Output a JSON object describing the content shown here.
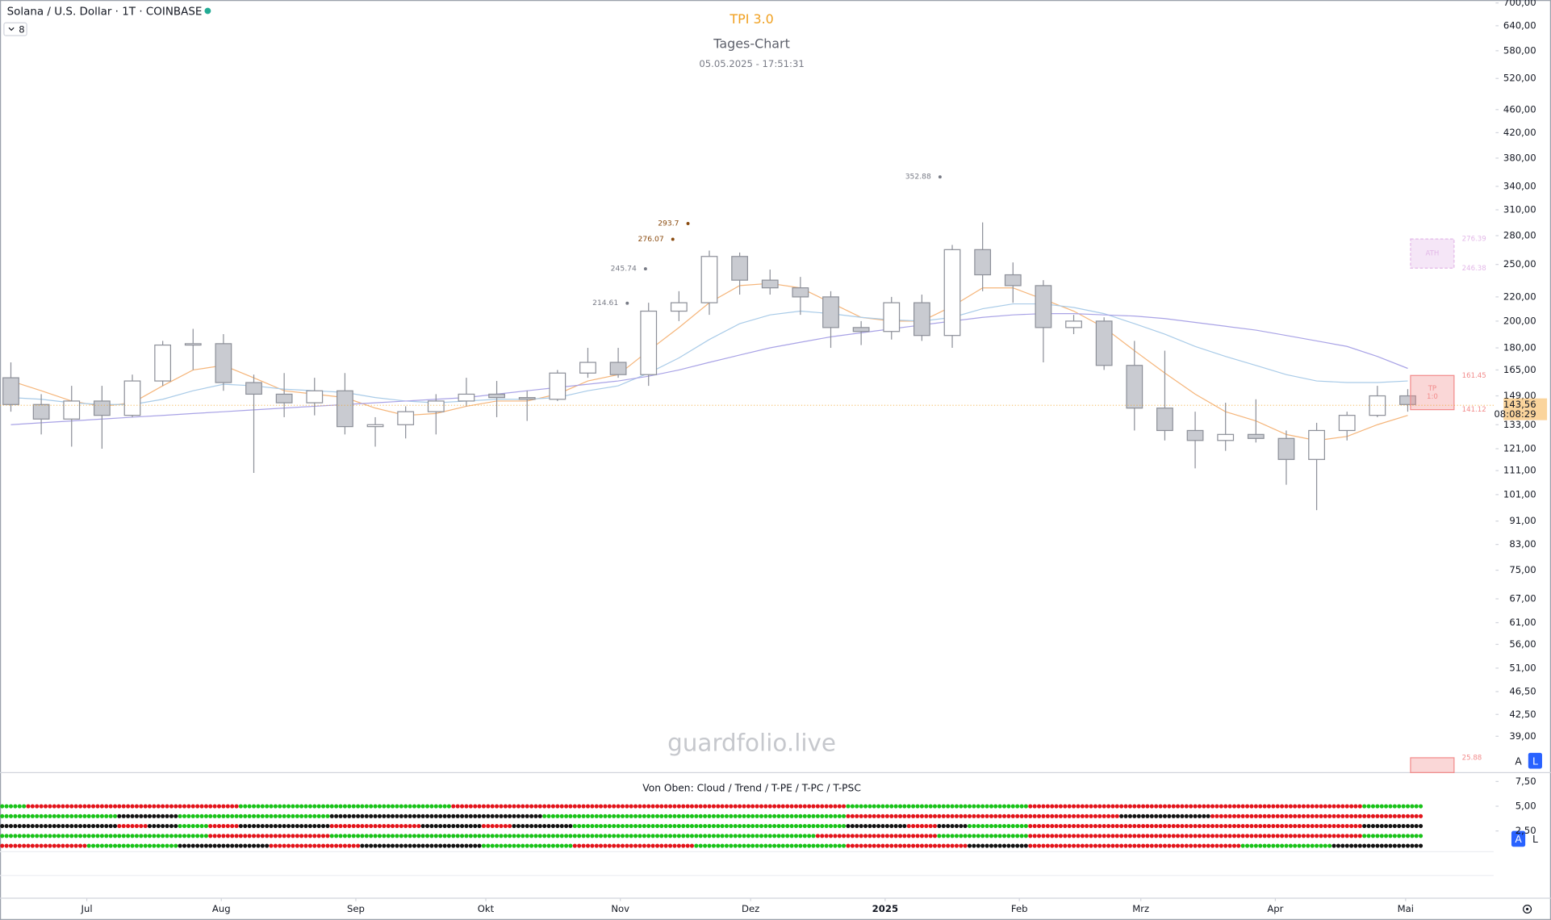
{
  "header": {
    "symbol": "Solana / U.S. Dollar · 1T · COINBASE",
    "indicators": 8
  },
  "watermark": "guardfolio.live",
  "ui": {
    "scale_buttons": [
      "A",
      "L",
      "A",
      "L"
    ]
  },
  "chart_data": [
    {
      "type": "candlestick",
      "title": "TPI 3.0",
      "subtitle": "Tages-Chart",
      "timestamp": "05.05.2025 - 17:51:31",
      "log_scale": true,
      "grid": false,
      "open": [
        160,
        144,
        136,
        146,
        138,
        158,
        182,
        183,
        157,
        150,
        145,
        152,
        132,
        133,
        140,
        146,
        150,
        148,
        147,
        163,
        170,
        162,
        208,
        215,
        258,
        235,
        228,
        220,
        195,
        192,
        215,
        189,
        265,
        240,
        230,
        195,
        200,
        168,
        142,
        130,
        125,
        128,
        126,
        116,
        130,
        138,
        149
      ],
      "high": [
        170,
        150,
        155,
        155,
        162,
        185,
        194,
        190,
        162,
        163,
        160,
        163,
        137,
        143,
        150,
        160,
        158,
        152,
        165,
        180,
        180,
        215,
        225,
        264,
        262,
        245,
        238,
        225,
        200,
        220,
        222,
        270,
        295,
        252,
        235,
        205,
        203,
        185,
        178,
        140,
        145,
        147,
        130,
        134,
        140,
        155,
        153
      ],
      "low": [
        140,
        128,
        122,
        121,
        137,
        155,
        165,
        152,
        110,
        137,
        138,
        128,
        122,
        126,
        128,
        143,
        137,
        135,
        146,
        160,
        160,
        155,
        200,
        205,
        222,
        222,
        205,
        180,
        182,
        186,
        185,
        180,
        225,
        215,
        170,
        190,
        165,
        130,
        125,
        112,
        120,
        124,
        105,
        95,
        125,
        137,
        140
      ],
      "close": [
        144,
        136,
        146,
        138,
        158,
        182,
        183,
        157,
        150,
        145,
        152,
        132,
        133,
        140,
        146,
        150,
        148,
        147,
        163,
        170,
        162,
        208,
        215,
        258,
        235,
        228,
        220,
        195,
        192,
        215,
        189,
        265,
        240,
        230,
        195,
        200,
        168,
        142,
        130,
        125,
        128,
        126,
        116,
        130,
        138,
        149,
        144
      ],
      "up_color": "#ffffff",
      "down_color": "#c9cbd1",
      "wick_color": "#8d9099",
      "xlim": [
        -0.3583,
        46.548
      ],
      "xticks": [
        {
          "value": 2.5,
          "label": "Jul"
        },
        {
          "value": 6.93,
          "label": "Aug"
        },
        {
          "value": 11.36,
          "label": "Sep"
        },
        {
          "value": 15.64,
          "label": "Okt"
        },
        {
          "value": 20.07,
          "label": "Nov"
        },
        {
          "value": 24.36,
          "label": "Dez"
        },
        {
          "value": 28.79,
          "label": "2025"
        },
        {
          "value": 33.21,
          "label": "Feb"
        },
        {
          "value": 37.21,
          "label": "Mrz"
        },
        {
          "value": 41.64,
          "label": "Apr"
        },
        {
          "value": 45.93,
          "label": "Mai"
        }
      ],
      "ylim": [
        33.8,
        708.2
      ],
      "yticks": [
        {
          "value": 700,
          "label": "700,00"
        },
        {
          "value": 640,
          "label": "640,00"
        },
        {
          "value": 580,
          "label": "580,00"
        },
        {
          "value": 520,
          "label": "520,00"
        },
        {
          "value": 460,
          "label": "460,00"
        },
        {
          "value": 420,
          "label": "420,00"
        },
        {
          "value": 380,
          "label": "380,00"
        },
        {
          "value": 340,
          "label": "340,00"
        },
        {
          "value": 310,
          "label": "310,00"
        },
        {
          "value": 280,
          "label": "280,00"
        },
        {
          "value": 250,
          "label": "250,00"
        },
        {
          "value": 220,
          "label": "220,00"
        },
        {
          "value": 200,
          "label": "200,00"
        },
        {
          "value": 180,
          "label": "180,00"
        },
        {
          "value": 165,
          "label": "165,00"
        },
        {
          "value": 149,
          "label": "149,00"
        },
        {
          "value": 133,
          "label": "133,00"
        },
        {
          "value": 121,
          "label": "121,00"
        },
        {
          "value": 111,
          "label": "111,00"
        },
        {
          "value": 101,
          "label": "101,00"
        },
        {
          "value": 91,
          "label": "91,00"
        },
        {
          "value": 83,
          "label": "83,00"
        },
        {
          "value": 75,
          "label": "75,00"
        },
        {
          "value": 67,
          "label": "67,00"
        },
        {
          "value": 61,
          "label": "61,00"
        },
        {
          "value": 56,
          "label": "56,00"
        },
        {
          "value": 51,
          "label": "51,00"
        },
        {
          "value": 46.5,
          "label": "46,50"
        },
        {
          "value": 42.5,
          "label": "42,50"
        },
        {
          "value": 39,
          "label": "39,00"
        }
      ],
      "moving_averages": [
        {
          "color": "#f5b57a",
          "values": [
            158,
            152,
            146,
            143,
            145,
            155,
            165,
            168,
            160,
            152,
            150,
            148,
            142,
            138,
            139,
            143,
            146,
            146,
            150,
            158,
            162,
            178,
            195,
            215,
            230,
            232,
            228,
            215,
            203,
            200,
            200,
            212,
            228,
            228,
            218,
            208,
            195,
            178,
            163,
            150,
            140,
            135,
            128,
            125,
            127,
            133,
            138
          ]
        },
        {
          "color": "#a9cbe8",
          "values": [
            148,
            147,
            145,
            144,
            144,
            147,
            152,
            156,
            155,
            153,
            152,
            151,
            148,
            146,
            145,
            146,
            147,
            147,
            148,
            152,
            155,
            163,
            173,
            186,
            198,
            205,
            208,
            206,
            203,
            201,
            200,
            203,
            210,
            214,
            214,
            211,
            206,
            198,
            190,
            181,
            174,
            168,
            162,
            158,
            157,
            157,
            158
          ]
        },
        {
          "color": "#a9a3e6",
          "values": [
            133,
            134,
            135,
            136,
            137,
            138,
            139,
            140,
            141,
            142,
            143,
            144,
            145,
            146,
            147,
            148,
            150,
            152,
            154,
            156,
            158,
            161,
            165,
            170,
            175,
            180,
            184,
            188,
            191,
            194,
            197,
            200,
            203,
            205,
            206,
            206,
            205,
            204,
            202,
            199,
            196,
            193,
            189,
            185,
            181,
            174,
            166
          ]
        }
      ],
      "annotations": [
        {
          "value": 352.88,
          "x": 30.5,
          "color": "#787b86"
        },
        {
          "value": 293.7,
          "x": 22.2,
          "color": "#8a4b0f"
        },
        {
          "value": 276.07,
          "x": 21.7,
          "color": "#8a4b0f"
        },
        {
          "value": 245.74,
          "x": 20.8,
          "color": "#787b86"
        },
        {
          "value": 214.61,
          "x": 20.2,
          "color": "#787b86"
        }
      ],
      "zones": [
        {
          "top": 276.39,
          "bottom": 246.38,
          "label": "ATH",
          "color": "#e3b8e8"
        },
        {
          "top": 161.45,
          "bottom": 141.12,
          "label": "TP",
          "sublabel": "1:0",
          "color": "#f28b8b"
        }
      ],
      "offscale_zone": {
        "top": 25.88,
        "color": "#f28b8b"
      },
      "last_price": {
        "value": 143.56,
        "label": "143,56"
      },
      "countdown": "08:08:29"
    },
    {
      "type": "dots",
      "title": "Von Oben: Cloud / Trend / T-PE / T-PC / T-PSC",
      "ylim": [
        0.4,
        8.4
      ],
      "yticks": [
        {
          "value": 7.5,
          "label": "7,50"
        },
        {
          "value": 5,
          "label": "5,00"
        },
        {
          "value": 2.5,
          "label": "2,50"
        }
      ],
      "colors": {
        "up": "#19c219",
        "down": "#e3141b",
        "neutral": "#131313"
      },
      "rows": [
        [
          1,
          -1,
          -1,
          -1,
          -1,
          -1,
          -1,
          -1,
          1,
          1,
          1,
          1,
          1,
          1,
          1,
          -1,
          -1,
          -1,
          -1,
          -1,
          -1,
          -1,
          -1,
          -1,
          -1,
          -1,
          -1,
          -1,
          1,
          1,
          1,
          1,
          1,
          1,
          -1,
          -1,
          -1,
          -1,
          -1,
          -1,
          -1,
          -1,
          -1,
          -1,
          -1,
          1,
          1
        ],
        [
          1,
          1,
          1,
          1,
          0,
          0,
          1,
          1,
          1,
          1,
          1,
          0,
          0,
          0,
          0,
          0,
          0,
          0,
          1,
          1,
          1,
          1,
          1,
          1,
          1,
          1,
          1,
          1,
          -1,
          -1,
          -1,
          -1,
          -1,
          -1,
          -1,
          -1,
          -1,
          0,
          0,
          0,
          -1,
          -1,
          -1,
          -1,
          -1,
          -1,
          -1
        ],
        [
          0,
          0,
          0,
          0,
          -1,
          0,
          1,
          -1,
          0,
          0,
          0,
          -1,
          -1,
          -1,
          0,
          0,
          -1,
          0,
          0,
          1,
          1,
          1,
          1,
          1,
          1,
          1,
          1,
          1,
          0,
          0,
          -1,
          0,
          1,
          1,
          -1,
          -1,
          -1,
          -1,
          -1,
          -1,
          -1,
          -1,
          -1,
          -1,
          -1,
          0,
          0
        ],
        [
          1,
          1,
          1,
          1,
          1,
          1,
          1,
          -1,
          -1,
          -1,
          -1,
          1,
          1,
          1,
          1,
          1,
          1,
          1,
          1,
          1,
          1,
          1,
          1,
          1,
          1,
          1,
          1,
          -1,
          -1,
          -1,
          -1,
          1,
          1,
          1,
          -1,
          -1,
          -1,
          -1,
          -1,
          -1,
          -1,
          -1,
          -1,
          -1,
          -1,
          1,
          1
        ],
        [
          -1,
          -1,
          -1,
          1,
          1,
          1,
          0,
          0,
          0,
          -1,
          -1,
          -1,
          0,
          0,
          0,
          0,
          1,
          1,
          1,
          -1,
          -1,
          -1,
          -1,
          1,
          1,
          1,
          1,
          1,
          -1,
          -1,
          -1,
          -1,
          0,
          0,
          -1,
          -1,
          -1,
          -1,
          -1,
          -1,
          -1,
          1,
          1,
          1,
          0,
          0,
          0
        ]
      ]
    }
  ]
}
